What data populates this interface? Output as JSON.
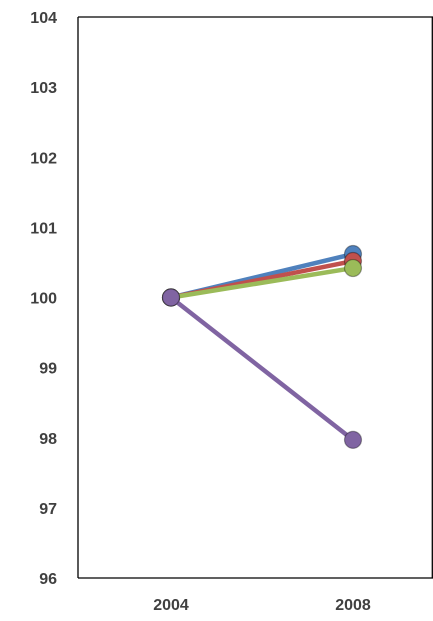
{
  "chart_data": {
    "type": "line",
    "categories": [
      "2004",
      "2008"
    ],
    "series": [
      {
        "color": "#4F81BD",
        "values": [
          100,
          100.62
        ]
      },
      {
        "color": "#C0504D",
        "values": [
          100,
          100.52
        ]
      },
      {
        "color": "#9BBB59",
        "values": [
          100,
          100.42
        ]
      },
      {
        "color": "#8064A2",
        "values": [
          100,
          97.97
        ]
      }
    ],
    "ylim": [
      96,
      104
    ],
    "y_ticks": [
      "96",
      "97",
      "98",
      "99",
      "100",
      "101",
      "102",
      "103",
      "104"
    ],
    "grid": false,
    "legend": "none",
    "title": "",
    "xlabel": "",
    "ylabel": ""
  }
}
